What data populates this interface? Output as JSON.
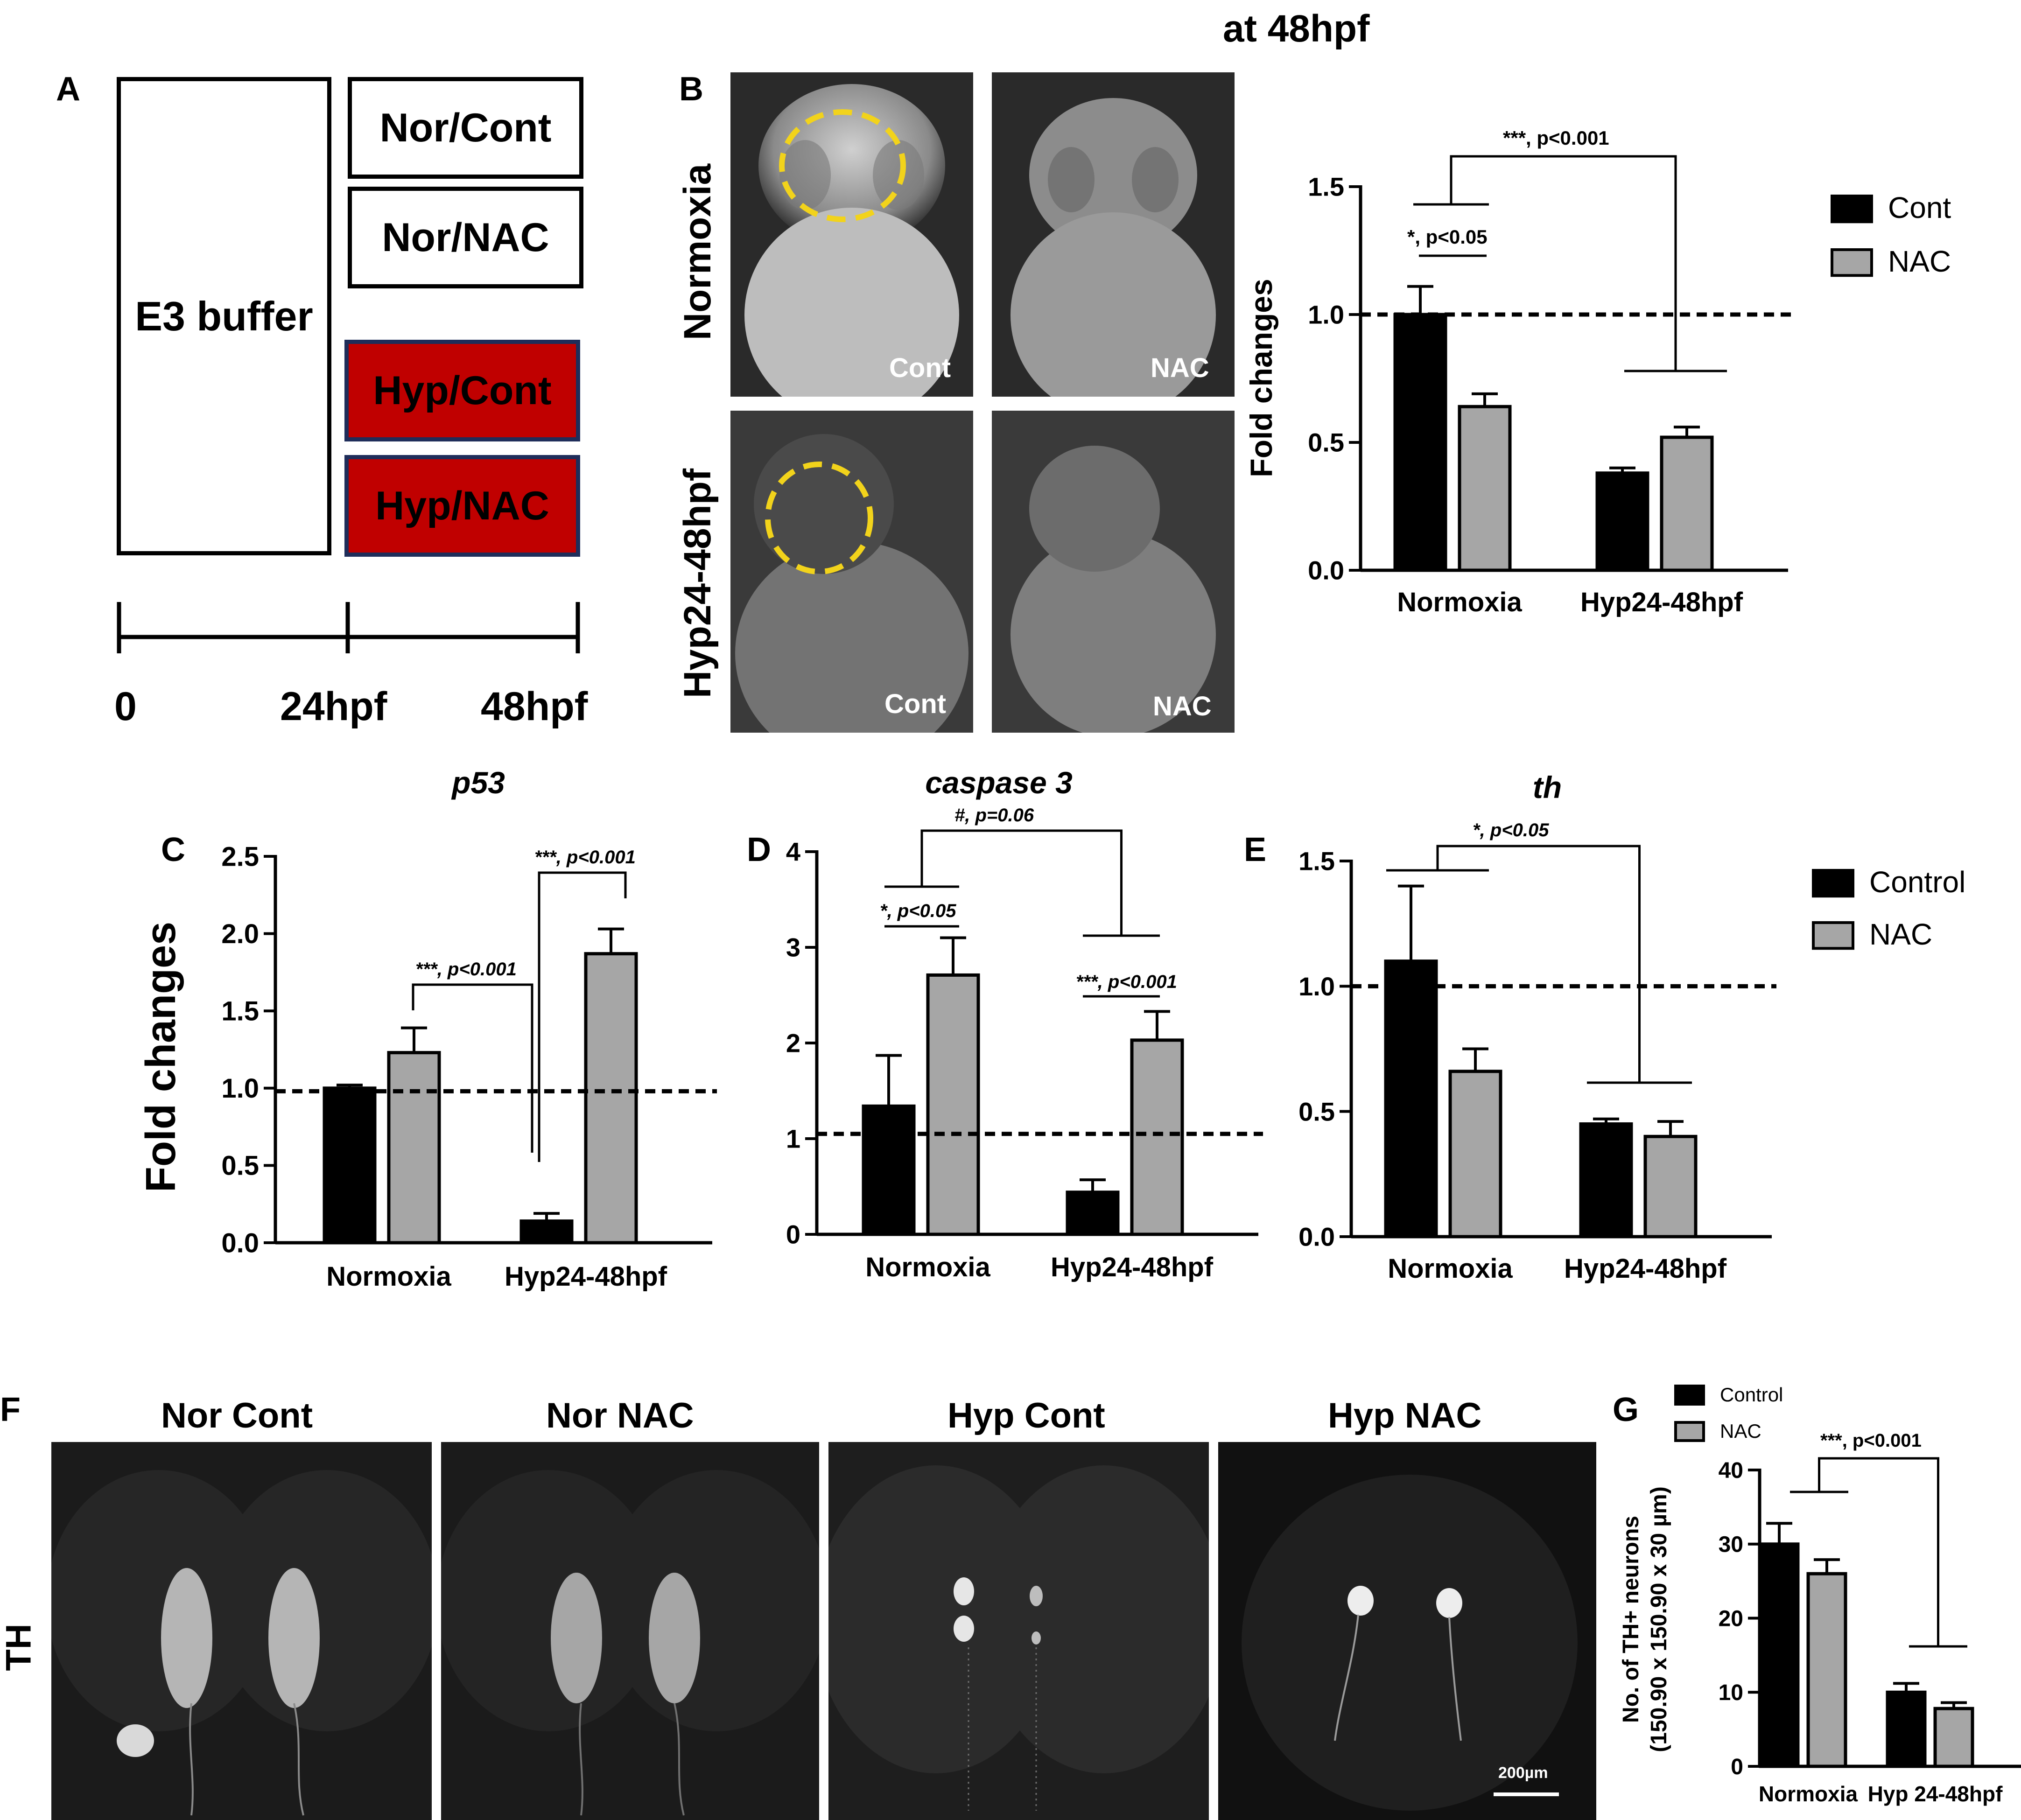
{
  "panel_letters": {
    "a": "A",
    "b": "B",
    "c": "C",
    "d": "D",
    "e": "E",
    "f": "F",
    "g": "G"
  },
  "panel_a": {
    "buffer_label": "E3 buffer",
    "groups": [
      "Nor/Cont",
      "Nor/NAC",
      "Hyp/Cont",
      "Hyp/NAC"
    ],
    "timeline_ticks": [
      "0",
      "24hpf",
      "48hpf"
    ],
    "colors": {
      "normoxia_box": "#ffffff",
      "hypoxia_box": "#c00000"
    }
  },
  "panel_b": {
    "header": "at 48hpf",
    "row_labels": [
      "Normoxia",
      "Hyp24-48hpf"
    ],
    "photo_labels": [
      "Cont",
      "NAC",
      "Cont",
      "NAC"
    ]
  },
  "panel_f": {
    "column_labels": [
      "Nor Cont",
      "Nor NAC",
      "Hyp Cont",
      "Hyp NAC"
    ],
    "row_label": "TH",
    "scale_bar": "200µm"
  },
  "chart_data": [
    {
      "panel": "B",
      "type": "bar",
      "title": "",
      "ylabel": "Fold changes",
      "xlabel": "",
      "categories": [
        "Normoxia",
        "Hyp24-48hpf"
      ],
      "series": [
        {
          "name": "Cont",
          "color": "#000000",
          "values": [
            1.0,
            0.38
          ],
          "errors": [
            0.11,
            0.02
          ]
        },
        {
          "name": "NAC",
          "color": "#a6a6a6",
          "values": [
            0.64,
            0.52
          ],
          "errors": [
            0.05,
            0.04
          ]
        }
      ],
      "ylim": [
        0,
        1.5
      ],
      "yticks": [
        "0.0",
        "0.5",
        "1.0",
        "1.5"
      ],
      "reference_line": 1.0,
      "annotations": [
        "***, p<0.001",
        "*, p<0.05"
      ],
      "legend_position": "right"
    },
    {
      "panel": "C",
      "type": "bar",
      "title": "p53",
      "ylabel": "Fold changes",
      "xlabel": "",
      "categories": [
        "Normoxia",
        "Hyp24-48hpf"
      ],
      "series": [
        {
          "name": "Control",
          "color": "#000000",
          "values": [
            1.0,
            0.14
          ],
          "errors": [
            0.02,
            0.05
          ]
        },
        {
          "name": "NAC",
          "color": "#a6a6a6",
          "values": [
            1.23,
            1.87
          ],
          "errors": [
            0.16,
            0.16
          ]
        }
      ],
      "ylim": [
        0,
        2.5
      ],
      "yticks": [
        "0.0",
        "0.5",
        "1.0",
        "1.5",
        "2.0",
        "2.5"
      ],
      "reference_line": 0.98,
      "annotations": [
        "***, p<0.001",
        "***, p<0.001"
      ]
    },
    {
      "panel": "D",
      "type": "bar",
      "title": "caspase 3",
      "ylabel": "",
      "xlabel": "",
      "categories": [
        "Normoxia",
        "Hyp24-48hpf"
      ],
      "series": [
        {
          "name": "Control",
          "color": "#000000",
          "values": [
            1.34,
            0.44
          ],
          "errors": [
            0.53,
            0.13
          ]
        },
        {
          "name": "NAC",
          "color": "#a6a6a6",
          "values": [
            2.71,
            2.03
          ],
          "errors": [
            0.39,
            0.3
          ]
        }
      ],
      "ylim": [
        0,
        4
      ],
      "yticks": [
        "0",
        "1",
        "2",
        "3",
        "4"
      ],
      "reference_line": 1.05,
      "annotations": [
        "#, p=0.06",
        "*, p<0.05",
        "***, p<0.001"
      ]
    },
    {
      "panel": "E",
      "type": "bar",
      "title": "th",
      "ylabel": "",
      "xlabel": "",
      "categories": [
        "Normoxia",
        "Hyp24-48hpf"
      ],
      "series": [
        {
          "name": "Control",
          "color": "#000000",
          "values": [
            1.1,
            0.45
          ],
          "errors": [
            0.3,
            0.02
          ]
        },
        {
          "name": "NAC",
          "color": "#a6a6a6",
          "values": [
            0.66,
            0.4
          ],
          "errors": [
            0.09,
            0.06
          ]
        }
      ],
      "ylim": [
        0,
        1.5
      ],
      "yticks": [
        "0.0",
        "0.5",
        "1.0",
        "1.5"
      ],
      "reference_line": 1.0,
      "annotations": [
        "*, p<0.05"
      ],
      "legend_position": "right"
    },
    {
      "panel": "G",
      "type": "bar",
      "title": "",
      "ylabel_lines": [
        "No. of TH+ neurons",
        "(150.90 x 150.90 x 30 µm)"
      ],
      "xlabel": "",
      "categories": [
        "Normoxia",
        "Hyp 24-48hpf"
      ],
      "series": [
        {
          "name": "Control",
          "color": "#000000",
          "values": [
            30,
            10
          ],
          "errors": [
            2.8,
            1.2
          ]
        },
        {
          "name": "NAC",
          "color": "#a6a6a6",
          "values": [
            26,
            7.8
          ],
          "errors": [
            1.9,
            0.8
          ]
        }
      ],
      "ylim": [
        0,
        40
      ],
      "yticks": [
        "0",
        "10",
        "20",
        "30",
        "40"
      ],
      "annotations": [
        "***, p<0.001"
      ],
      "legend_position": "top"
    }
  ]
}
